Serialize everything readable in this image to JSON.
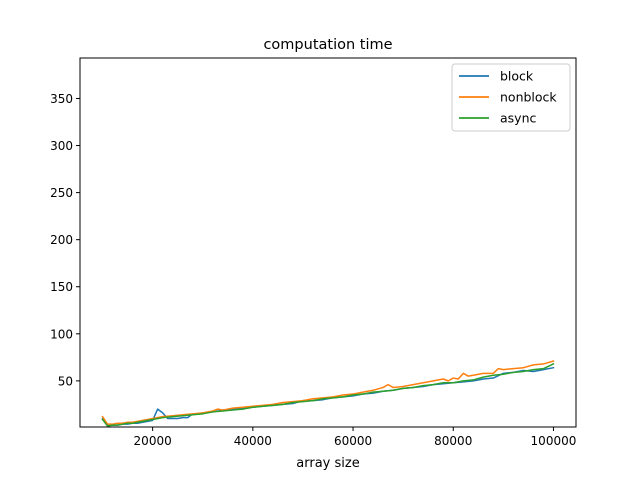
{
  "chart_data": {
    "type": "line",
    "title": "computation time",
    "xlabel": "array size",
    "ylabel": "",
    "xlim": [
      5500,
      104500
    ],
    "ylim": [
      1,
      393
    ],
    "x_ticks": [
      20000,
      40000,
      60000,
      80000,
      100000
    ],
    "x_tick_labels": [
      "20000",
      "40000",
      "60000",
      "80000",
      "100000"
    ],
    "y_ticks": [
      50,
      100,
      150,
      200,
      250,
      300,
      350
    ],
    "y_tick_labels": [
      "50",
      "100",
      "150",
      "200",
      "250",
      "300",
      "350"
    ],
    "grid": false,
    "legend_position": "top-right",
    "series": [
      {
        "name": "block",
        "color": "#1f77b4",
        "points": [
          [
            10000,
            10
          ],
          [
            11000,
            3
          ],
          [
            12000,
            3
          ],
          [
            13000,
            3
          ],
          [
            14000,
            4
          ],
          [
            15000,
            4
          ],
          [
            16000,
            5
          ],
          [
            17000,
            5
          ],
          [
            18000,
            6
          ],
          [
            19000,
            7
          ],
          [
            20000,
            8
          ],
          [
            21000,
            20
          ],
          [
            22000,
            16
          ],
          [
            23000,
            10
          ],
          [
            24000,
            10
          ],
          [
            25000,
            10
          ],
          [
            26000,
            11
          ],
          [
            27000,
            11
          ],
          [
            28000,
            15
          ],
          [
            29000,
            15
          ],
          [
            30000,
            16
          ],
          [
            32000,
            17
          ],
          [
            34000,
            19
          ],
          [
            36000,
            20
          ],
          [
            38000,
            21
          ],
          [
            40000,
            22
          ],
          [
            42000,
            23
          ],
          [
            44000,
            24
          ],
          [
            46000,
            25
          ],
          [
            48000,
            26
          ],
          [
            50000,
            29
          ],
          [
            52000,
            29
          ],
          [
            54000,
            30
          ],
          [
            56000,
            32
          ],
          [
            58000,
            33
          ],
          [
            60000,
            34
          ],
          [
            62000,
            36
          ],
          [
            64000,
            37
          ],
          [
            66000,
            39
          ],
          [
            68000,
            40
          ],
          [
            70000,
            42
          ],
          [
            72000,
            43
          ],
          [
            74000,
            44
          ],
          [
            76000,
            46
          ],
          [
            78000,
            47
          ],
          [
            80000,
            48
          ],
          [
            82000,
            49
          ],
          [
            84000,
            50
          ],
          [
            86000,
            52
          ],
          [
            88000,
            53
          ],
          [
            90000,
            58
          ],
          [
            92000,
            59
          ],
          [
            94000,
            61
          ],
          [
            96000,
            60
          ],
          [
            98000,
            62
          ],
          [
            100000,
            64
          ]
        ]
      },
      {
        "name": "nonblock",
        "color": "#ff7f0e",
        "points": [
          [
            10000,
            12
          ],
          [
            11000,
            4
          ],
          [
            12000,
            4
          ],
          [
            13000,
            5
          ],
          [
            14000,
            5
          ],
          [
            15000,
            6
          ],
          [
            16000,
            6
          ],
          [
            17000,
            7
          ],
          [
            18000,
            8
          ],
          [
            19000,
            9
          ],
          [
            20000,
            10
          ],
          [
            22000,
            12
          ],
          [
            24000,
            13
          ],
          [
            26000,
            14
          ],
          [
            28000,
            15
          ],
          [
            30000,
            16
          ],
          [
            32000,
            18
          ],
          [
            33000,
            20
          ],
          [
            34000,
            19
          ],
          [
            36000,
            21
          ],
          [
            38000,
            22
          ],
          [
            40000,
            23
          ],
          [
            42000,
            24
          ],
          [
            44000,
            25
          ],
          [
            46000,
            27
          ],
          [
            48000,
            28
          ],
          [
            50000,
            29
          ],
          [
            52000,
            31
          ],
          [
            54000,
            32
          ],
          [
            56000,
            33
          ],
          [
            58000,
            35
          ],
          [
            60000,
            36
          ],
          [
            62000,
            38
          ],
          [
            64000,
            40
          ],
          [
            66000,
            43
          ],
          [
            67000,
            46
          ],
          [
            68000,
            43
          ],
          [
            70000,
            44
          ],
          [
            72000,
            46
          ],
          [
            74000,
            48
          ],
          [
            76000,
            50
          ],
          [
            78000,
            52
          ],
          [
            79000,
            50
          ],
          [
            80000,
            53
          ],
          [
            81000,
            52
          ],
          [
            82000,
            58
          ],
          [
            83000,
            55
          ],
          [
            84000,
            56
          ],
          [
            86000,
            58
          ],
          [
            88000,
            58
          ],
          [
            89000,
            63
          ],
          [
            90000,
            62
          ],
          [
            92000,
            63
          ],
          [
            94000,
            64
          ],
          [
            96000,
            67
          ],
          [
            98000,
            68
          ],
          [
            100000,
            71
          ]
        ]
      },
      {
        "name": "async",
        "color": "#2ca02c",
        "points": [
          [
            10000,
            9
          ],
          [
            11000,
            2
          ],
          [
            12000,
            3
          ],
          [
            13000,
            3
          ],
          [
            14000,
            4
          ],
          [
            15000,
            5
          ],
          [
            16000,
            5
          ],
          [
            17000,
            6
          ],
          [
            18000,
            7
          ],
          [
            19000,
            8
          ],
          [
            20000,
            9
          ],
          [
            22000,
            11
          ],
          [
            24000,
            12
          ],
          [
            26000,
            13
          ],
          [
            28000,
            14
          ],
          [
            30000,
            15
          ],
          [
            32000,
            17
          ],
          [
            34000,
            18
          ],
          [
            36000,
            19
          ],
          [
            38000,
            20
          ],
          [
            40000,
            22
          ],
          [
            42000,
            23
          ],
          [
            44000,
            24
          ],
          [
            46000,
            25
          ],
          [
            48000,
            27
          ],
          [
            50000,
            28
          ],
          [
            52000,
            29
          ],
          [
            54000,
            31
          ],
          [
            56000,
            32
          ],
          [
            58000,
            33
          ],
          [
            60000,
            35
          ],
          [
            62000,
            36
          ],
          [
            64000,
            38
          ],
          [
            66000,
            39
          ],
          [
            68000,
            40
          ],
          [
            70000,
            42
          ],
          [
            72000,
            43
          ],
          [
            74000,
            45
          ],
          [
            76000,
            46
          ],
          [
            78000,
            48
          ],
          [
            80000,
            48
          ],
          [
            82000,
            50
          ],
          [
            84000,
            51
          ],
          [
            86000,
            54
          ],
          [
            88000,
            56
          ],
          [
            90000,
            57
          ],
          [
            92000,
            59
          ],
          [
            94000,
            60
          ],
          [
            96000,
            62
          ],
          [
            98000,
            63
          ],
          [
            100000,
            68
          ]
        ]
      }
    ]
  }
}
